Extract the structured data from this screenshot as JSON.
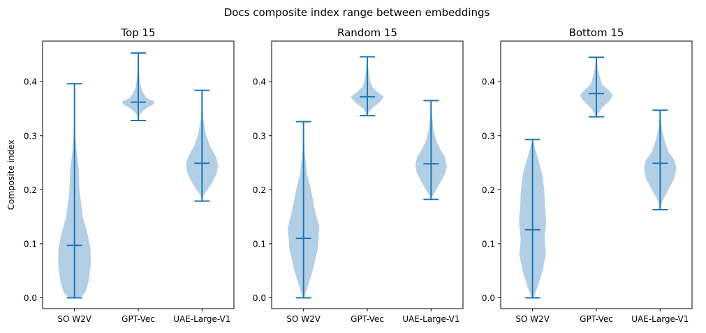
{
  "figure": {
    "suptitle": "Docs composite index range between embeddings"
  },
  "colors": {
    "body": "#b3cfe5",
    "line": "#1f77b4",
    "axis": "#000000"
  },
  "chart_data": [
    {
      "type": "violin",
      "title": "Top 15",
      "xlabel": "",
      "ylabel": "Composite index",
      "categories": [
        "SO W2V",
        "GPT-Vec",
        "UAE-Large-V1"
      ],
      "ylim": [
        -0.02,
        0.475
      ],
      "yticks": [
        0.0,
        0.1,
        0.2,
        0.3,
        0.4
      ],
      "ytick_labels": [
        "0.0",
        "0.1",
        "0.2",
        "0.3",
        "0.4"
      ],
      "grid": false,
      "series": [
        {
          "min": 0.0,
          "median": 0.097,
          "max": 0.396,
          "density": [
            [
              0.0,
              0.35
            ],
            [
              0.01,
              0.65
            ],
            [
              0.03,
              0.85
            ],
            [
              0.06,
              0.98
            ],
            [
              0.09,
              0.97
            ],
            [
              0.12,
              0.78
            ],
            [
              0.15,
              0.5
            ],
            [
              0.2,
              0.3
            ],
            [
              0.24,
              0.25
            ],
            [
              0.27,
              0.13
            ],
            [
              0.3,
              0.05
            ],
            [
              0.35,
              0.01
            ],
            [
              0.396,
              0.0
            ]
          ]
        },
        {
          "min": 0.328,
          "median": 0.362,
          "max": 0.453,
          "density": [
            [
              0.328,
              0.0
            ],
            [
              0.34,
              0.1
            ],
            [
              0.35,
              0.45
            ],
            [
              0.358,
              0.9
            ],
            [
              0.363,
              1.0
            ],
            [
              0.37,
              0.5
            ],
            [
              0.38,
              0.28
            ],
            [
              0.39,
              0.15
            ],
            [
              0.41,
              0.06
            ],
            [
              0.43,
              0.02
            ],
            [
              0.453,
              0.0
            ]
          ]
        },
        {
          "min": 0.179,
          "median": 0.249,
          "max": 0.384,
          "density": [
            [
              0.179,
              0.0
            ],
            [
              0.19,
              0.1
            ],
            [
              0.21,
              0.55
            ],
            [
              0.23,
              0.88
            ],
            [
              0.245,
              0.98
            ],
            [
              0.26,
              0.85
            ],
            [
              0.28,
              0.5
            ],
            [
              0.3,
              0.25
            ],
            [
              0.33,
              0.08
            ],
            [
              0.36,
              0.02
            ],
            [
              0.384,
              0.0
            ]
          ]
        }
      ]
    },
    {
      "type": "violin",
      "title": "Random 15",
      "xlabel": "",
      "ylabel": "",
      "categories": [
        "SO W2V",
        "GPT-Vec",
        "UAE-Large-V1"
      ],
      "ylim": [
        -0.02,
        0.475
      ],
      "yticks": [
        0.0,
        0.1,
        0.2,
        0.3,
        0.4
      ],
      "ytick_labels": [
        "0.0",
        "0.1",
        "0.2",
        "0.3",
        "0.4"
      ],
      "grid": false,
      "series": [
        {
          "min": 0.0,
          "median": 0.11,
          "max": 0.326,
          "density": [
            [
              0.0,
              0.03
            ],
            [
              0.02,
              0.25
            ],
            [
              0.05,
              0.55
            ],
            [
              0.09,
              0.85
            ],
            [
              0.13,
              0.95
            ],
            [
              0.16,
              0.7
            ],
            [
              0.2,
              0.45
            ],
            [
              0.23,
              0.2
            ],
            [
              0.27,
              0.06
            ],
            [
              0.3,
              0.02
            ],
            [
              0.326,
              0.0
            ]
          ]
        },
        {
          "min": 0.337,
          "median": 0.372,
          "max": 0.446,
          "density": [
            [
              0.337,
              0.0
            ],
            [
              0.35,
              0.25
            ],
            [
              0.362,
              0.75
            ],
            [
              0.372,
              1.0
            ],
            [
              0.38,
              0.65
            ],
            [
              0.39,
              0.3
            ],
            [
              0.4,
              0.18
            ],
            [
              0.415,
              0.1
            ],
            [
              0.43,
              0.04
            ],
            [
              0.446,
              0.0
            ]
          ]
        },
        {
          "min": 0.182,
          "median": 0.248,
          "max": 0.365,
          "density": [
            [
              0.182,
              0.0
            ],
            [
              0.19,
              0.12
            ],
            [
              0.21,
              0.5
            ],
            [
              0.23,
              0.85
            ],
            [
              0.245,
              0.95
            ],
            [
              0.26,
              0.85
            ],
            [
              0.275,
              0.55
            ],
            [
              0.29,
              0.32
            ],
            [
              0.31,
              0.15
            ],
            [
              0.34,
              0.05
            ],
            [
              0.365,
              0.0
            ]
          ]
        }
      ]
    },
    {
      "type": "violin",
      "title": "Bottom 15",
      "xlabel": "",
      "ylabel": "",
      "categories": [
        "SO W2V",
        "GPT-Vec",
        "UAE-Large-V1"
      ],
      "ylim": [
        -0.02,
        0.475
      ],
      "yticks": [
        0.0,
        0.1,
        0.2,
        0.3,
        0.4
      ],
      "ytick_labels": [
        "0.0",
        "0.1",
        "0.2",
        "0.3",
        "0.4"
      ],
      "grid": false,
      "series": [
        {
          "min": 0.0,
          "median": 0.126,
          "max": 0.293,
          "density": [
            [
              0.0,
              0.05
            ],
            [
              0.02,
              0.3
            ],
            [
              0.05,
              0.6
            ],
            [
              0.08,
              0.8
            ],
            [
              0.11,
              0.72
            ],
            [
              0.14,
              0.82
            ],
            [
              0.17,
              0.75
            ],
            [
              0.2,
              0.7
            ],
            [
              0.23,
              0.58
            ],
            [
              0.26,
              0.3
            ],
            [
              0.293,
              0.0
            ]
          ]
        },
        {
          "min": 0.335,
          "median": 0.378,
          "max": 0.445,
          "density": [
            [
              0.335,
              0.0
            ],
            [
              0.35,
              0.3
            ],
            [
              0.365,
              0.8
            ],
            [
              0.375,
              1.0
            ],
            [
              0.385,
              0.7
            ],
            [
              0.395,
              0.35
            ],
            [
              0.41,
              0.2
            ],
            [
              0.425,
              0.08
            ],
            [
              0.445,
              0.0
            ]
          ]
        },
        {
          "min": 0.163,
          "median": 0.249,
          "max": 0.347,
          "density": [
            [
              0.163,
              0.0
            ],
            [
              0.18,
              0.15
            ],
            [
              0.2,
              0.5
            ],
            [
              0.22,
              0.85
            ],
            [
              0.24,
              0.98
            ],
            [
              0.255,
              0.85
            ],
            [
              0.27,
              0.5
            ],
            [
              0.29,
              0.28
            ],
            [
              0.31,
              0.12
            ],
            [
              0.33,
              0.04
            ],
            [
              0.347,
              0.0
            ]
          ]
        }
      ]
    }
  ]
}
